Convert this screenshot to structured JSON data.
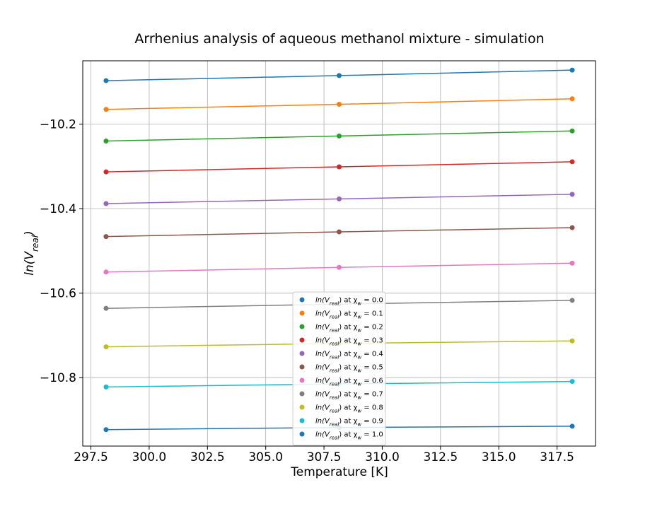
{
  "chart_data": {
    "type": "line",
    "title": "Arrhenius analysis of aqueous methanol mixture - simulation",
    "xlabel": "Temperature [K]",
    "ylabel_base": "ln(V",
    "ylabel_sub": "real",
    "ylabel_close": ")",
    "x": [
      298.15,
      308.15,
      318.15
    ],
    "xlim": [
      297.15,
      319.15
    ],
    "ylim": [
      -10.962,
      -10.05
    ],
    "xticks": [
      297.5,
      300.0,
      302.5,
      305.0,
      307.5,
      310.0,
      312.5,
      315.0,
      317.5
    ],
    "xtick_labels": [
      "297.5",
      "300.0",
      "302.5",
      "305.0",
      "307.5",
      "310.0",
      "312.5",
      "315.0",
      "317.5"
    ],
    "yticks": [
      -10.2,
      -10.4,
      -10.6,
      -10.8
    ],
    "ytick_labels": [
      "−10.2",
      "−10.4",
      "−10.6",
      "−10.8"
    ],
    "grid": true,
    "legend_position": "lower-center",
    "legend_prefix": "ln(V",
    "legend_sub": "real",
    "legend_mid": ") at χ",
    "legend_sub2": "w",
    "series": [
      {
        "name": "ln(V_real) at χ_w = 0.0",
        "chi_label": " = 0.0",
        "color": "#1f77b4",
        "values": [
          -10.097,
          -10.085,
          -10.072
        ]
      },
      {
        "name": "ln(V_real) at χ_w = 0.1",
        "chi_label": " = 0.1",
        "color": "#ff7f0e",
        "values": [
          -10.165,
          -10.153,
          -10.14
        ]
      },
      {
        "name": "ln(V_real) at χ_w = 0.2",
        "chi_label": " = 0.2",
        "color": "#2ca02c",
        "values": [
          -10.24,
          -10.228,
          -10.216
        ]
      },
      {
        "name": "ln(V_real) at χ_w = 0.3",
        "chi_label": " = 0.3",
        "color": "#d62728",
        "values": [
          -10.313,
          -10.301,
          -10.289
        ]
      },
      {
        "name": "ln(V_real) at χ_w = 0.4",
        "chi_label": " = 0.4",
        "color": "#9467bd",
        "values": [
          -10.388,
          -10.377,
          -10.366
        ]
      },
      {
        "name": "ln(V_real) at χ_w = 0.5",
        "chi_label": " = 0.5",
        "color": "#8c564b",
        "values": [
          -10.466,
          -10.455,
          -10.445
        ]
      },
      {
        "name": "ln(V_real) at χ_w = 0.6",
        "chi_label": " = 0.6",
        "color": "#e377c2",
        "values": [
          -10.55,
          -10.539,
          -10.529
        ]
      },
      {
        "name": "ln(V_real) at χ_w = 0.7",
        "chi_label": " = 0.7",
        "color": "#7f7f7f",
        "values": [
          -10.636,
          -10.626,
          -10.617
        ]
      },
      {
        "name": "ln(V_real) at χ_w = 0.8",
        "chi_label": " = 0.8",
        "color": "#bcbd22",
        "values": [
          -10.727,
          -10.719,
          -10.713
        ]
      },
      {
        "name": "ln(V_real) at χ_w = 0.9",
        "chi_label": " = 0.9",
        "color": "#17becf",
        "values": [
          -10.822,
          -10.815,
          -10.809
        ]
      },
      {
        "name": "ln(V_real) at χ_w = 1.0",
        "chi_label": " = 1.0",
        "color": "#1f77b4",
        "values": [
          -10.923,
          -10.918,
          -10.915
        ]
      }
    ]
  }
}
